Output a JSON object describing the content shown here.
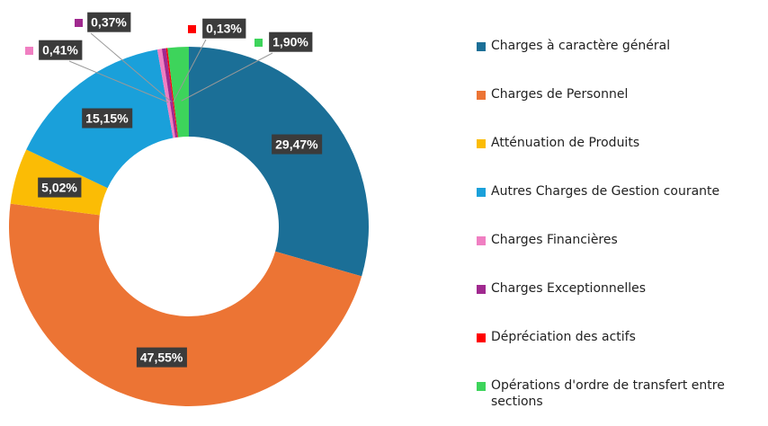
{
  "chart_data": {
    "type": "donut",
    "categories": [
      "Charges à caractère général",
      "Charges de Personnel",
      "Atténuation de Produits",
      "Autres Charges de Gestion courante",
      "Charges Financières",
      "Charges Exceptionnelles",
      "Dépréciation des actifs",
      "Opérations d'ordre de transfert entre sections"
    ],
    "values": [
      29.47,
      47.55,
      5.02,
      15.15,
      0.41,
      0.37,
      0.13,
      1.9
    ],
    "value_labels": [
      "29,47%",
      "47,55%",
      "5,02%",
      "15,15%",
      "0,41%",
      "0,37%",
      "0,13%",
      "1,90%"
    ],
    "colors": [
      "#1b6f97",
      "#ec7434",
      "#fbbc05",
      "#1aa0da",
      "#f07fc2",
      "#a0298f",
      "#ff0000",
      "#3dd45b"
    ],
    "legend": "right"
  }
}
